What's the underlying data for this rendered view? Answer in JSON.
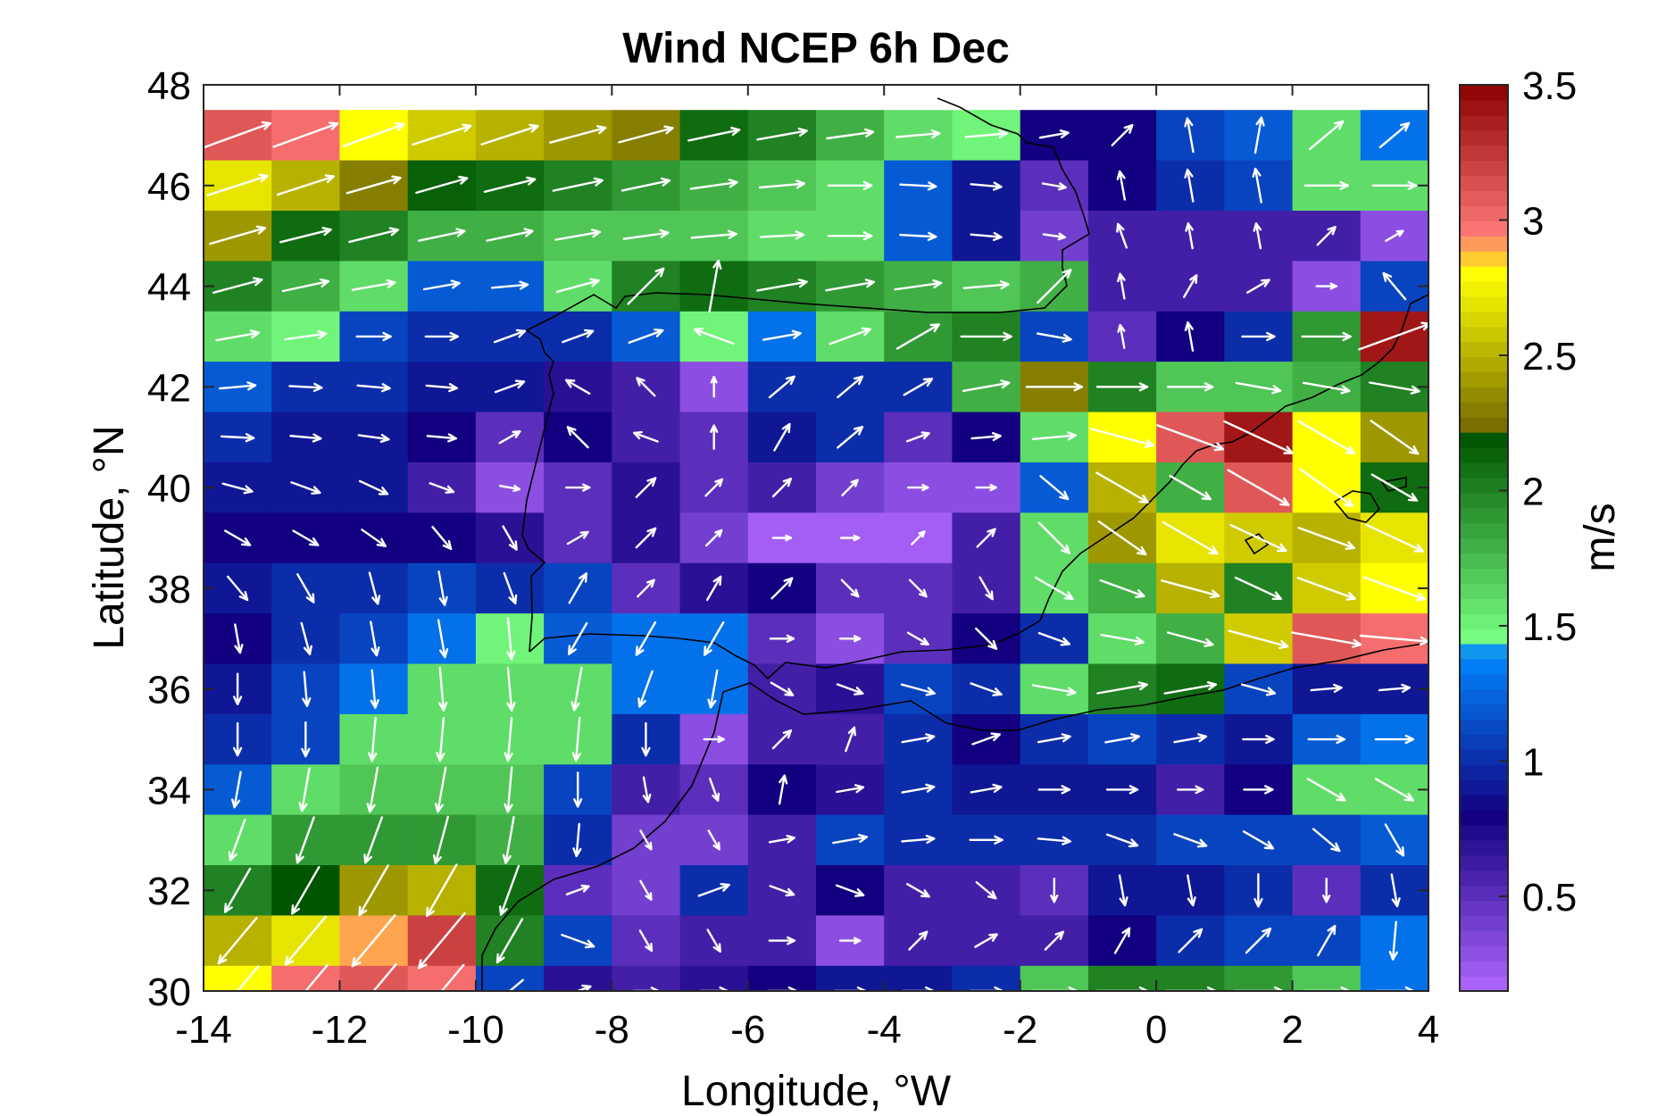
{
  "chart_data": {
    "type": "heatmap",
    "title": "Wind NCEP 6h Dec",
    "xlabel": "Longitude, °W",
    "ylabel": "Latitude, °N",
    "colorbar_label": "m/s",
    "xlim": [
      -14,
      4
    ],
    "ylim": [
      30,
      48
    ],
    "xticks": [
      -14,
      -12,
      -10,
      -8,
      -6,
      -4,
      -2,
      0,
      2,
      4
    ],
    "yticks": [
      30,
      32,
      34,
      36,
      38,
      40,
      42,
      44,
      46,
      48
    ],
    "xtick_labels": [
      "-14",
      "-12",
      "-10",
      "-8",
      "-6",
      "-4",
      "-2",
      "0",
      "2",
      "4"
    ],
    "ytick_labels": [
      "30",
      "32",
      "34",
      "36",
      "38",
      "40",
      "42",
      "44",
      "46",
      "48"
    ],
    "colorbar": {
      "range": [
        0.15,
        3.5
      ],
      "ticks": [
        0.5,
        1,
        1.5,
        2,
        2.5,
        3,
        3.5
      ],
      "tick_labels": [
        "0.5",
        "1",
        "1.5",
        "2",
        "2.5",
        "3",
        "3.5"
      ]
    },
    "grid": false,
    "cell_size_deg": 1,
    "lons": [
      -13.5,
      -12.5,
      -11.5,
      -10.5,
      -9.5,
      -8.5,
      -7.5,
      -6.5,
      -5.5,
      -4.5,
      -3.5,
      -2.5,
      -1.5,
      -0.5,
      0.5,
      1.5,
      2.5,
      3.5
    ],
    "lats": [
      47,
      46,
      45,
      44,
      43,
      42,
      41,
      40,
      39,
      38,
      37,
      36,
      35,
      34,
      33,
      32,
      31,
      30
    ],
    "speed": [
      [
        3.1,
        3.0,
        2.8,
        2.6,
        2.5,
        2.4,
        2.3,
        2.1,
        2.0,
        1.8,
        1.6,
        1.5,
        0.8,
        0.8,
        1.1,
        1.2,
        1.6,
        1.3
      ],
      [
        2.7,
        2.5,
        2.3,
        2.15,
        2.1,
        2.0,
        1.9,
        1.8,
        1.7,
        1.6,
        1.2,
        0.9,
        0.5,
        0.8,
        1.0,
        1.1,
        1.6,
        1.6
      ],
      [
        2.4,
        2.1,
        2.0,
        1.8,
        1.8,
        1.7,
        1.7,
        1.7,
        1.6,
        1.6,
        1.2,
        0.9,
        0.4,
        0.6,
        0.6,
        0.6,
        0.6,
        0.3
      ],
      [
        2.0,
        1.8,
        1.6,
        1.2,
        1.2,
        1.6,
        2.0,
        2.1,
        2.0,
        1.9,
        1.8,
        1.7,
        1.8,
        0.6,
        0.6,
        0.6,
        0.3,
        1.1
      ],
      [
        1.6,
        1.5,
        1.1,
        1.0,
        1.0,
        1.0,
        1.2,
        1.5,
        1.3,
        1.6,
        1.9,
        2.0,
        1.1,
        0.5,
        0.8,
        1.0,
        1.9,
        3.4
      ],
      [
        1.2,
        1.0,
        1.0,
        0.9,
        0.9,
        0.7,
        0.6,
        0.3,
        1.0,
        1.0,
        1.0,
        1.8,
        2.3,
        2.0,
        1.7,
        1.7,
        1.8,
        2.0
      ],
      [
        1.0,
        0.9,
        0.9,
        0.8,
        0.5,
        0.8,
        0.6,
        0.5,
        0.9,
        1.0,
        0.5,
        0.8,
        1.6,
        2.8,
        3.1,
        3.4,
        2.8,
        2.4
      ],
      [
        0.9,
        0.9,
        0.9,
        0.6,
        0.3,
        0.5,
        0.7,
        0.5,
        0.6,
        0.4,
        0.3,
        0.3,
        1.2,
        2.5,
        1.8,
        3.1,
        2.8,
        2.1
      ],
      [
        0.8,
        0.8,
        0.8,
        0.8,
        0.7,
        0.5,
        0.7,
        0.4,
        0.2,
        0.2,
        0.2,
        0.6,
        1.6,
        2.4,
        2.7,
        2.6,
        2.5,
        2.7
      ],
      [
        0.9,
        1.0,
        1.0,
        1.1,
        1.0,
        1.1,
        0.5,
        0.7,
        0.8,
        0.5,
        0.5,
        0.6,
        1.6,
        1.8,
        2.5,
        2.0,
        2.6,
        2.8
      ],
      [
        0.8,
        1.0,
        1.1,
        1.3,
        1.5,
        1.2,
        1.3,
        1.3,
        0.5,
        0.3,
        0.5,
        0.8,
        1.0,
        1.6,
        1.8,
        2.6,
        3.1,
        3.0
      ],
      [
        0.9,
        1.1,
        1.3,
        1.6,
        1.6,
        1.6,
        1.3,
        1.3,
        0.6,
        0.7,
        1.1,
        1.0,
        1.6,
        2.0,
        2.1,
        1.1,
        0.9,
        0.9
      ],
      [
        1.0,
        1.1,
        1.6,
        1.6,
        1.6,
        1.6,
        1.0,
        0.3,
        0.6,
        0.6,
        1.0,
        0.8,
        1.0,
        1.1,
        1.0,
        0.9,
        1.2,
        1.3
      ],
      [
        1.2,
        1.6,
        1.7,
        1.7,
        1.7,
        1.1,
        0.6,
        0.5,
        0.8,
        0.7,
        1.0,
        0.9,
        0.9,
        0.9,
        0.6,
        0.8,
        1.6,
        1.6
      ],
      [
        1.6,
        1.9,
        1.9,
        1.9,
        1.8,
        1.0,
        0.4,
        0.4,
        0.6,
        1.1,
        1.0,
        1.0,
        1.0,
        1.0,
        1.1,
        1.1,
        1.1,
        1.2
      ],
      [
        2.0,
        2.2,
        2.4,
        2.5,
        2.1,
        0.5,
        0.4,
        1.0,
        0.6,
        0.8,
        0.6,
        0.6,
        0.5,
        0.9,
        0.9,
        1.0,
        0.5,
        1.0
      ],
      [
        2.5,
        2.7,
        2.9,
        3.2,
        2.0,
        1.1,
        0.5,
        0.6,
        0.6,
        0.3,
        0.6,
        0.6,
        0.6,
        0.8,
        1.0,
        1.1,
        1.1,
        1.3
      ],
      [
        2.8,
        3.0,
        3.1,
        3.0,
        1.1,
        0.7,
        0.6,
        0.7,
        0.8,
        0.9,
        0.9,
        1.0,
        1.7,
        2.0,
        2.0,
        1.9,
        1.7,
        1.3
      ]
    ],
    "direction_deg": [
      [
        20,
        20,
        20,
        18,
        18,
        15,
        15,
        12,
        10,
        8,
        5,
        5,
        10,
        45,
        100,
        80,
        40,
        40
      ],
      [
        18,
        18,
        16,
        16,
        14,
        12,
        12,
        8,
        5,
        0,
        -3,
        -5,
        -10,
        100,
        100,
        100,
        0,
        0
      ],
      [
        16,
        14,
        14,
        12,
        12,
        10,
        8,
        5,
        3,
        0,
        -3,
        -5,
        -8,
        110,
        100,
        100,
        45,
        30
      ],
      [
        15,
        12,
        10,
        10,
        5,
        15,
        45,
        80,
        10,
        10,
        8,
        5,
        45,
        100,
        60,
        30,
        0,
        130
      ],
      [
        10,
        8,
        0,
        0,
        20,
        20,
        20,
        160,
        10,
        20,
        30,
        0,
        -10,
        100,
        100,
        0,
        0,
        20
      ],
      [
        5,
        -3,
        -5,
        -5,
        20,
        150,
        135,
        90,
        40,
        40,
        30,
        10,
        0,
        0,
        0,
        -10,
        -10,
        -10
      ],
      [
        -3,
        -5,
        -8,
        -5,
        30,
        135,
        160,
        90,
        60,
        40,
        20,
        5,
        5,
        -15,
        -20,
        -25,
        -30,
        -35
      ],
      [
        -15,
        -20,
        -25,
        -20,
        -10,
        0,
        45,
        45,
        45,
        45,
        0,
        0,
        -40,
        -30,
        -30,
        -30,
        -35,
        -30
      ],
      [
        -30,
        -30,
        -35,
        -50,
        -60,
        30,
        45,
        45,
        0,
        0,
        45,
        45,
        -45,
        -35,
        -30,
        -25,
        -20,
        -25
      ],
      [
        -50,
        -60,
        -75,
        -80,
        -70,
        60,
        45,
        60,
        45,
        -45,
        -45,
        -60,
        -30,
        -20,
        -15,
        -25,
        -20,
        -20
      ],
      [
        -80,
        -75,
        -80,
        -80,
        -85,
        -120,
        -120,
        -120,
        0,
        0,
        -30,
        -45,
        -20,
        -10,
        -15,
        -15,
        -10,
        -5
      ],
      [
        -90,
        -85,
        -85,
        -85,
        -85,
        -100,
        -110,
        -100,
        -30,
        -20,
        -15,
        -20,
        -10,
        10,
        10,
        -15,
        5,
        5
      ],
      [
        -90,
        -90,
        -95,
        -95,
        -95,
        -95,
        -90,
        0,
        45,
        70,
        10,
        20,
        10,
        10,
        10,
        0,
        0,
        0
      ],
      [
        -100,
        -100,
        -100,
        -100,
        -95,
        -90,
        -80,
        -70,
        80,
        10,
        10,
        10,
        0,
        0,
        0,
        0,
        -30,
        -30
      ],
      [
        -110,
        -110,
        -110,
        -105,
        -100,
        -95,
        -60,
        -60,
        10,
        10,
        5,
        0,
        -5,
        -20,
        -20,
        -30,
        -40,
        -60
      ],
      [
        -120,
        -120,
        -120,
        -120,
        -110,
        20,
        -60,
        20,
        -20,
        -20,
        -30,
        -40,
        -90,
        -80,
        -80,
        -90,
        -90,
        -80
      ],
      [
        -130,
        -130,
        -130,
        -130,
        -120,
        -20,
        -60,
        -60,
        0,
        0,
        45,
        30,
        45,
        60,
        45,
        45,
        60,
        -95
      ],
      [
        -130,
        -130,
        -130,
        -130,
        -140,
        20,
        0,
        0,
        0,
        0,
        0,
        0,
        0,
        0,
        0,
        0,
        0,
        0
      ]
    ]
  }
}
